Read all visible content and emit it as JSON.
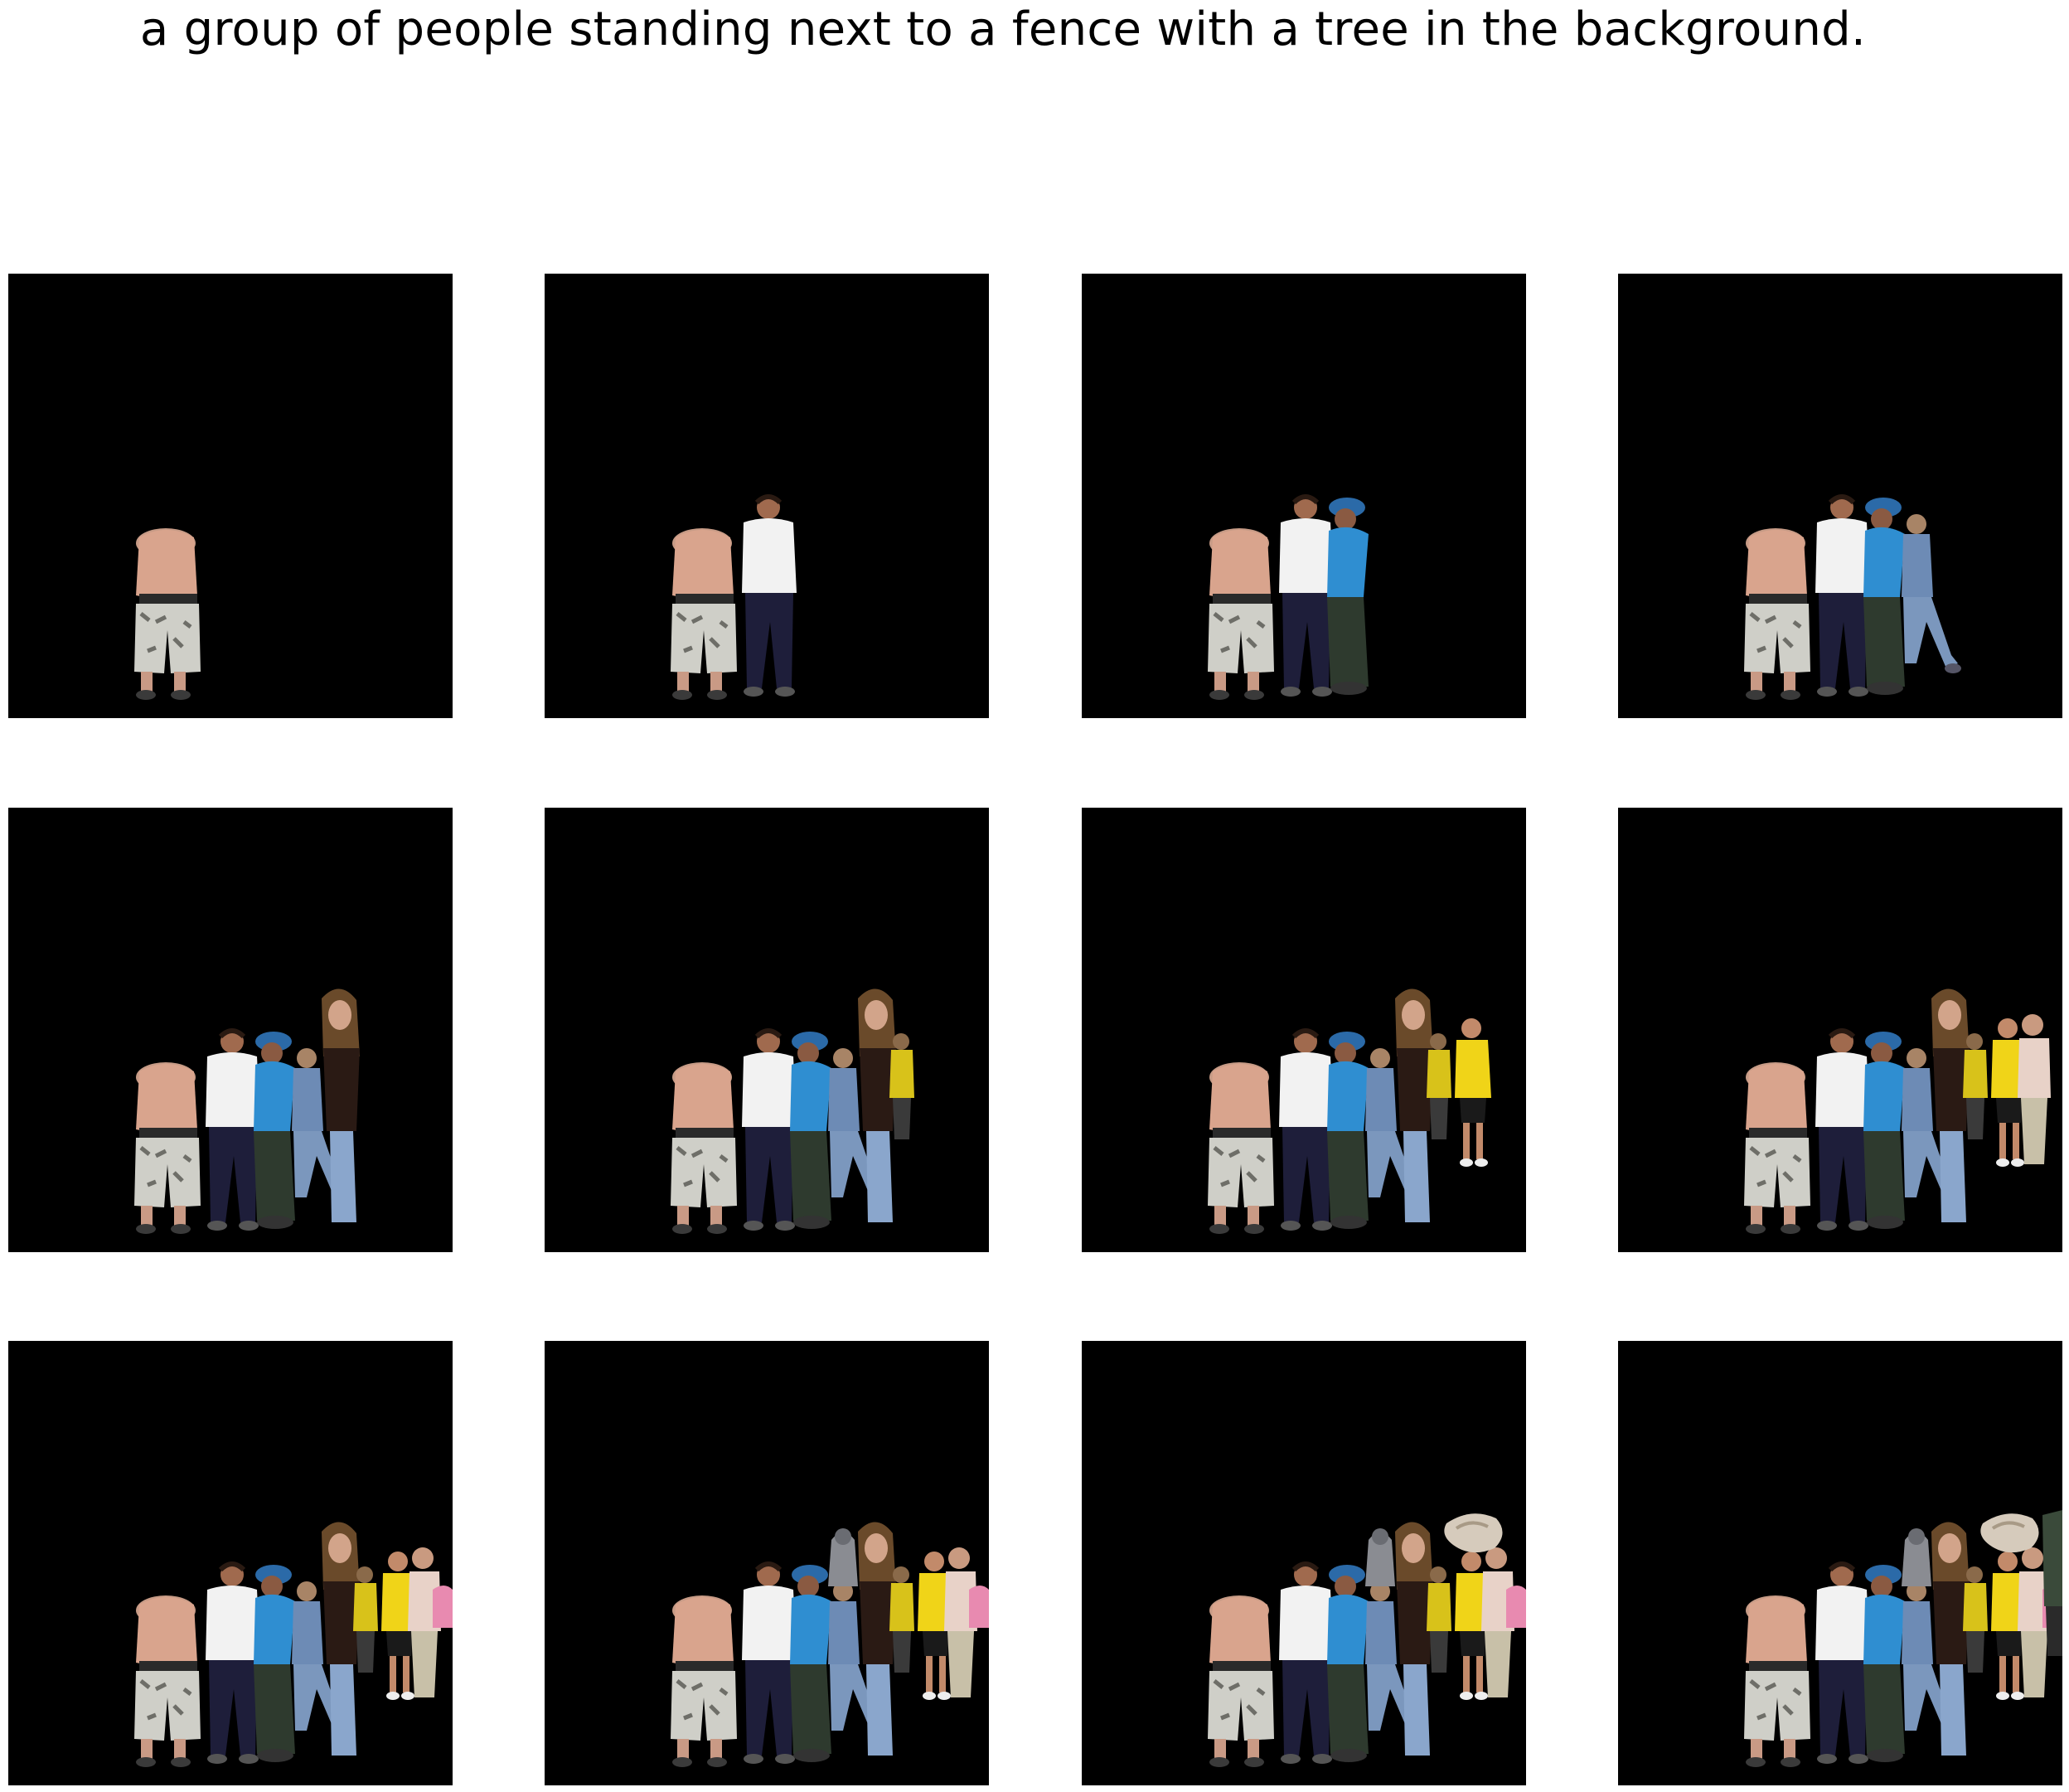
{
  "caption": "a group of people standing next to a fence with a tree in the background.",
  "grid": {
    "rows": 3,
    "columns": 4,
    "background_color": "#000000"
  },
  "frames": [
    {
      "index": 1,
      "people": [
        "shirtless-person"
      ]
    },
    {
      "index": 2,
      "people": [
        "shirtless-person",
        "white-shirt-person"
      ]
    },
    {
      "index": 3,
      "people": [
        "shirtless-person",
        "white-shirt-person",
        "blue-cap-person"
      ]
    },
    {
      "index": 4,
      "people": [
        "shirtless-person",
        "white-shirt-person",
        "blue-cap-person",
        "denim-person"
      ]
    },
    {
      "index": 5,
      "people": [
        "shirtless-person",
        "white-shirt-person",
        "blue-cap-person",
        "denim-person",
        "long-hair-person"
      ]
    },
    {
      "index": 6,
      "people": [
        "shirtless-person",
        "white-shirt-person",
        "blue-cap-person",
        "denim-person",
        "long-hair-person",
        "yellow-child"
      ]
    },
    {
      "index": 7,
      "people": [
        "shirtless-person",
        "white-shirt-person",
        "blue-cap-person",
        "denim-person",
        "long-hair-person",
        "yellow-child",
        "yellow-shirt-person"
      ]
    },
    {
      "index": 8,
      "people": [
        "shirtless-person",
        "white-shirt-person",
        "blue-cap-person",
        "denim-person",
        "long-hair-person",
        "yellow-child",
        "yellow-shirt-person",
        "pink-shirt-man"
      ]
    },
    {
      "index": 9,
      "people": [
        "shirtless-person",
        "white-shirt-person",
        "blue-cap-person",
        "denim-person",
        "long-hair-person",
        "yellow-child",
        "yellow-shirt-person",
        "pink-shirt-man",
        "pink-child"
      ]
    },
    {
      "index": 10,
      "people": [
        "shirtless-person",
        "white-shirt-person",
        "blue-cap-person",
        "denim-person",
        "long-hair-person",
        "yellow-child",
        "yellow-shirt-person",
        "pink-shirt-man",
        "pink-child",
        "grey-person"
      ]
    },
    {
      "index": 11,
      "people": [
        "shirtless-person",
        "white-shirt-person",
        "blue-cap-person",
        "denim-person",
        "long-hair-person",
        "yellow-child",
        "yellow-shirt-person",
        "pink-shirt-man",
        "pink-child",
        "grey-person",
        "shell-fragment"
      ]
    },
    {
      "index": 12,
      "people": [
        "shirtless-person",
        "white-shirt-person",
        "blue-cap-person",
        "denim-person",
        "long-hair-person",
        "yellow-child",
        "yellow-shirt-person",
        "pink-shirt-man",
        "pink-child",
        "grey-person",
        "shell-fragment",
        "edge-figure"
      ]
    }
  ]
}
